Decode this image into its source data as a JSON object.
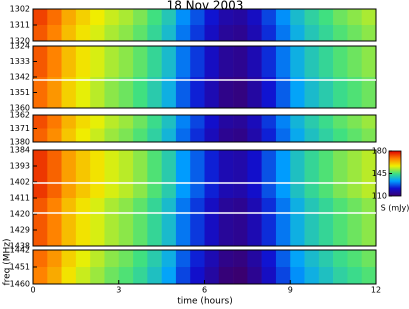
{
  "chart_data": {
    "type": "heatmap",
    "title": "18 Nov 2003",
    "xlabel": "time (hours)",
    "ylabel": "freq (MHz)",
    "xlim": [
      0,
      12
    ],
    "xticks": [
      0,
      3,
      6,
      9,
      12
    ],
    "bins": [
      0,
      0.5,
      1,
      1.5,
      2,
      2.5,
      3,
      3.5,
      4,
      4.5,
      5,
      5.5,
      6,
      6.5,
      7,
      7.5,
      8,
      8.5,
      9,
      9.5,
      10,
      10.5,
      11,
      11.5,
      12
    ],
    "colormap": [
      "#3a0070",
      "#1010d0",
      "#00a0ff",
      "#40e080",
      "#f0f000",
      "#ff8000",
      "#e00000"
    ],
    "colorbar": {
      "label": "S (mJy)",
      "lim": [
        110,
        180
      ],
      "ticks": [
        110,
        145,
        180
      ]
    },
    "panels": [
      {
        "ylim": [
          1302,
          1320
        ],
        "yticks": [
          1302,
          1311,
          1320
        ],
        "values": [
          [
            174,
            170,
            164,
            160,
            157,
            154,
            152,
            149,
            145,
            140,
            132,
            127,
            122,
            117,
            116,
            120,
            126,
            132,
            138,
            142,
            145,
            148,
            150,
            152
          ],
          [
            172,
            168,
            162,
            158,
            155,
            152,
            150,
            147,
            143,
            138,
            130,
            125,
            120,
            115,
            114,
            118,
            124,
            130,
            136,
            140,
            143,
            146,
            148,
            150
          ]
        ]
      },
      {
        "ylim": [
          1324,
          1360
        ],
        "yticks": [
          1324,
          1333,
          1342,
          1351,
          1360
        ],
        "values": [
          [
            172,
            168,
            162,
            158,
            155,
            152,
            150,
            147,
            143,
            138,
            130,
            125,
            120,
            115,
            114,
            118,
            124,
            130,
            136,
            140,
            143,
            146,
            148,
            150
          ],
          [
            170,
            166,
            160,
            156,
            153,
            150,
            148,
            145,
            141,
            136,
            128,
            123,
            118,
            113,
            112,
            116,
            122,
            128,
            134,
            138,
            141,
            144,
            146,
            148
          ]
        ]
      },
      {
        "ylim": [
          1362,
          1380
        ],
        "yticks": [
          1362,
          1371,
          1380
        ],
        "values": [
          [
            173,
            169,
            163,
            159,
            156,
            153,
            151,
            148,
            144,
            139,
            131,
            126,
            121,
            116,
            115,
            119,
            125,
            131,
            137,
            141,
            144,
            147,
            149,
            151
          ],
          [
            171,
            167,
            161,
            157,
            154,
            151,
            149,
            146,
            142,
            137,
            129,
            124,
            119,
            114,
            113,
            117,
            123,
            129,
            135,
            139,
            142,
            145,
            147,
            149
          ]
        ]
      },
      {
        "ylim": [
          1384,
          1438
        ],
        "yticks": [
          1384,
          1393,
          1402,
          1411,
          1420,
          1429,
          1438
        ],
        "values": [
          [
            175,
            171,
            165,
            161,
            158,
            155,
            153,
            150,
            146,
            141,
            133,
            128,
            123,
            118,
            117,
            121,
            127,
            133,
            139,
            143,
            146,
            149,
            151,
            153
          ],
          [
            172,
            168,
            162,
            158,
            155,
            152,
            150,
            147,
            143,
            138,
            130,
            125,
            120,
            115,
            114,
            118,
            124,
            130,
            136,
            140,
            143,
            146,
            148,
            150
          ]
        ]
      },
      {
        "ylim": [
          1442,
          1460
        ],
        "yticks": [
          1442,
          1451,
          1460
        ],
        "values": [
          [
            170,
            166,
            160,
            156,
            153,
            150,
            148,
            145,
            141,
            136,
            128,
            123,
            118,
            113,
            112,
            116,
            122,
            128,
            134,
            138,
            141,
            144,
            146,
            148
          ],
          [
            168,
            164,
            158,
            154,
            151,
            148,
            146,
            143,
            139,
            134,
            126,
            121,
            116,
            111,
            110,
            114,
            120,
            126,
            132,
            136,
            139,
            142,
            144,
            146
          ]
        ]
      }
    ]
  }
}
